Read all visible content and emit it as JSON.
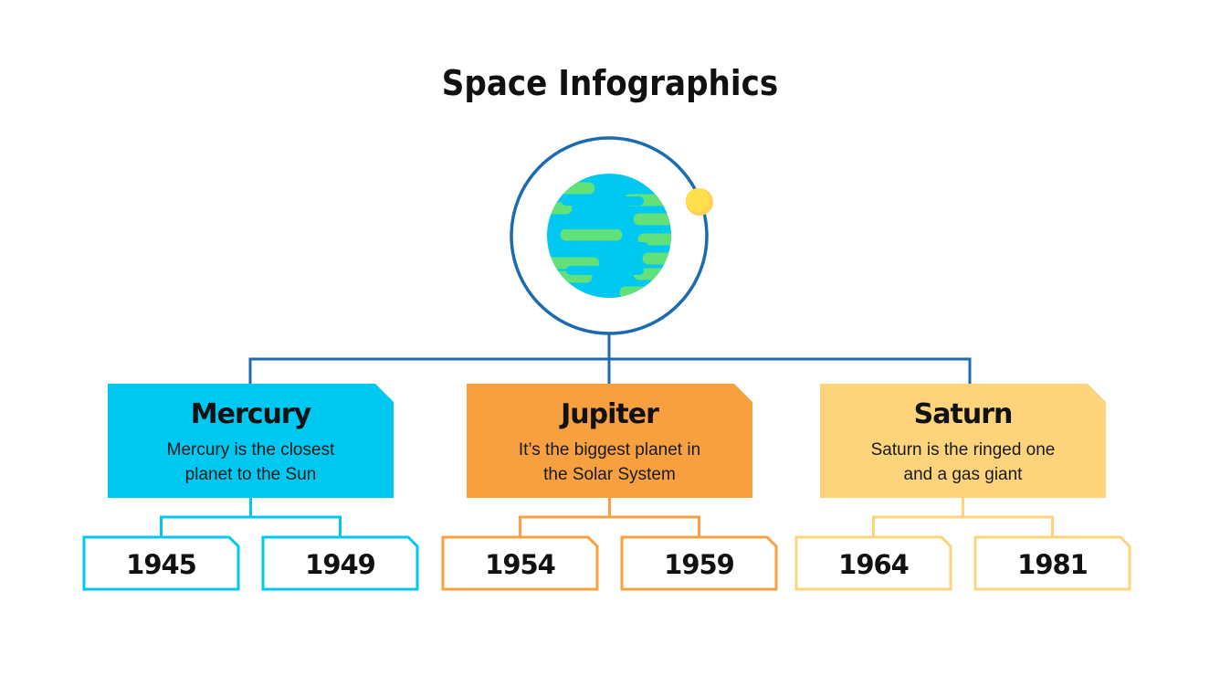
{
  "title": "Space Infographics",
  "colors": {
    "line": "#1a6bb0",
    "ocean": "#00c8f0",
    "land": "#62e07a",
    "sun": "#ffe04a"
  },
  "planets": [
    {
      "name": "Mercury",
      "desc": [
        "Mercury is the closest",
        "planet to the Sun"
      ],
      "color": "#00c8f0",
      "years": [
        "1945",
        "1949"
      ]
    },
    {
      "name": "Jupiter",
      "desc": [
        "It’s the biggest planet in",
        "the Solar System"
      ],
      "color": "#f7a03f",
      "years": [
        "1954",
        "1959"
      ]
    },
    {
      "name": "Saturn",
      "desc": [
        "Saturn is the ringed one",
        "and a gas giant"
      ],
      "color": "#fdd47c",
      "years": [
        "1964",
        "1981"
      ]
    }
  ]
}
